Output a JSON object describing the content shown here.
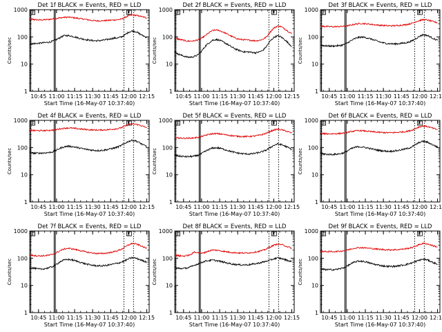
{
  "chart_data": {
    "type": "line",
    "y_scale": "log",
    "ylim": [
      1,
      1000
    ],
    "ytick_labels": [
      "1",
      "10",
      "100",
      "1000"
    ],
    "xlim": [
      "10:37:40",
      "12:17"
    ],
    "xtick_labels": [
      "10:45",
      "11:00",
      "11:15",
      "11:30",
      "11:45",
      "12:00",
      "12:15"
    ],
    "xlabel": "Start Time (16-May-07 10:37:40)",
    "ylabel": "Counts/sec",
    "legend_text": "BLACK = Events, RED = LLD",
    "colors": {
      "events": "#000000",
      "lld": "#e00000"
    },
    "times": [
      "10:38",
      "10:40",
      "10:42",
      "10:45",
      "10:48",
      "10:51",
      "10:54",
      "10:57",
      "11:00",
      "11:03",
      "11:06",
      "11:09",
      "11:12",
      "11:15",
      "11:18",
      "11:21",
      "11:24",
      "11:27",
      "11:30",
      "11:33",
      "11:36",
      "11:39",
      "11:42",
      "11:45",
      "11:48",
      "11:51",
      "11:54",
      "11:57",
      "12:00",
      "12:03",
      "12:06",
      "12:09",
      "12:12",
      "12:15"
    ],
    "panels": [
      {
        "title": "Det 1f",
        "markers": [
          "10:38",
          "10:58",
          "10:59",
          "11:56",
          "12:00",
          "12:04"
        ],
        "marker_labels": [
          "E",
          "E"
        ],
        "events": [
          55,
          56,
          57,
          58,
          60,
          62,
          64,
          70,
          80,
          95,
          110,
          112,
          108,
          100,
          92,
          85,
          80,
          76,
          73,
          72,
          73,
          76,
          80,
          85,
          90,
          92,
          100,
          120,
          150,
          165,
          155,
          130,
          110,
          95
        ],
        "lld": [
          450,
          440,
          430,
          420,
          420,
          430,
          440,
          460,
          480,
          500,
          520,
          530,
          520,
          500,
          480,
          460,
          440,
          420,
          400,
          390,
          390,
          395,
          400,
          410,
          420,
          430,
          450,
          520,
          600,
          640,
          620,
          580,
          540,
          500
        ]
      },
      {
        "title": "Det 2f",
        "markers": [
          "10:38",
          "10:58",
          "10:59",
          "11:56",
          "12:00",
          "12:04"
        ],
        "marker_labels": [
          "E",
          "E"
        ],
        "events": [
          28,
          24,
          22,
          20,
          18,
          18,
          19,
          22,
          30,
          45,
          60,
          75,
          80,
          75,
          65,
          55,
          45,
          38,
          33,
          30,
          28,
          28,
          27,
          26,
          28,
          32,
          45,
          70,
          95,
          110,
          100,
          80,
          60,
          45
        ],
        "lld": [
          90,
          85,
          80,
          75,
          70,
          70,
          72,
          78,
          90,
          110,
          140,
          170,
          180,
          170,
          150,
          130,
          110,
          95,
          85,
          80,
          78,
          76,
          74,
          72,
          75,
          82,
          100,
          150,
          210,
          250,
          240,
          200,
          160,
          130
        ]
      },
      {
        "title": "Det 3f",
        "markers": [
          "10:38",
          "10:58",
          "10:59",
          "11:56",
          "12:00",
          "12:04"
        ],
        "marker_labels": [
          "E",
          "E"
        ],
        "events": [
          50,
          48,
          47,
          46,
          46,
          47,
          48,
          52,
          60,
          72,
          85,
          95,
          98,
          95,
          88,
          80,
          72,
          65,
          60,
          57,
          56,
          55,
          56,
          58,
          60,
          64,
          72,
          88,
          105,
          120,
          115,
          100,
          85,
          75
        ],
        "lld": [
          250,
          245,
          240,
          238,
          236,
          238,
          240,
          245,
          255,
          270,
          290,
          305,
          310,
          305,
          295,
          285,
          275,
          268,
          262,
          258,
          256,
          258,
          262,
          270,
          280,
          295,
          320,
          360,
          400,
          430,
          420,
          390,
          360,
          330
        ]
      },
      {
        "title": "Det 4f",
        "markers": [
          "10:38",
          "10:58",
          "10:59",
          "11:56",
          "12:00",
          "12:04"
        ],
        "marker_labels": [
          "E",
          "E"
        ],
        "events": [
          65,
          63,
          62,
          62,
          63,
          64,
          66,
          70,
          80,
          95,
          105,
          112,
          110,
          105,
          98,
          92,
          87,
          83,
          80,
          78,
          78,
          80,
          84,
          90,
          96,
          105,
          120,
          145,
          170,
          185,
          175,
          150,
          125,
          110
        ],
        "lld": [
          430,
          425,
          420,
          418,
          418,
          422,
          430,
          440,
          460,
          490,
          510,
          525,
          520,
          505,
          490,
          475,
          462,
          452,
          445,
          440,
          440,
          444,
          452,
          465,
          480,
          500,
          540,
          620,
          700,
          740,
          720,
          670,
          600,
          540
        ]
      },
      {
        "title": "Det 5f",
        "markers": [
          "10:38",
          "10:58",
          "10:59",
          "11:56",
          "12:00",
          "12:04"
        ],
        "marker_labels": [
          "E",
          "E"
        ],
        "events": [
          52,
          50,
          48,
          47,
          46,
          47,
          48,
          52,
          60,
          72,
          85,
          95,
          98,
          95,
          88,
          80,
          73,
          67,
          63,
          60,
          59,
          58,
          59,
          62,
          66,
          72,
          82,
          100,
          120,
          135,
          130,
          115,
          100,
          85
        ],
        "lld": [
          230,
          225,
          222,
          220,
          220,
          222,
          228,
          238,
          255,
          280,
          305,
          320,
          325,
          318,
          305,
          290,
          278,
          268,
          260,
          255,
          254,
          255,
          260,
          270,
          285,
          305,
          340,
          390,
          440,
          470,
          455,
          420,
          380,
          340
        ]
      },
      {
        "title": "Det 6f",
        "markers": [
          "10:38",
          "10:58",
          "10:59",
          "11:56",
          "12:00",
          "12:04"
        ],
        "marker_labels": [
          "E",
          "E"
        ],
        "events": [
          60,
          58,
          57,
          56,
          56,
          57,
          59,
          64,
          75,
          90,
          100,
          108,
          105,
          100,
          94,
          88,
          82,
          78,
          75,
          73,
          73,
          75,
          78,
          83,
          88,
          95,
          108,
          130,
          155,
          170,
          160,
          140,
          120,
          105
        ],
        "lld": [
          330,
          325,
          322,
          320,
          320,
          324,
          330,
          340,
          360,
          385,
          405,
          418,
          415,
          405,
          392,
          380,
          370,
          362,
          356,
          352,
          352,
          356,
          362,
          372,
          385,
          405,
          440,
          510,
          580,
          620,
          600,
          550,
          500,
          450
        ]
      },
      {
        "title": "Det 7f",
        "markers": [
          "10:38",
          "10:58",
          "10:59",
          "11:56",
          "12:00",
          "12:04"
        ],
        "marker_labels": [
          "E",
          "E"
        ],
        "events": [
          45,
          44,
          42,
          40,
          40,
          42,
          45,
          50,
          60,
          75,
          85,
          90,
          88,
          82,
          75,
          68,
          62,
          58,
          55,
          53,
          52,
          53,
          55,
          58,
          62,
          66,
          72,
          82,
          95,
          105,
          100,
          90,
          80,
          72
        ],
        "lld": [
          130,
          128,
          125,
          122,
          122,
          125,
          130,
          140,
          160,
          190,
          215,
          230,
          225,
          212,
          198,
          185,
          172,
          162,
          155,
          150,
          148,
          150,
          155,
          163,
          175,
          190,
          215,
          260,
          310,
          350,
          335,
          300,
          260,
          230
        ]
      },
      {
        "title": "Det 8f",
        "markers": [
          "10:38",
          "10:58",
          "10:59",
          "11:56",
          "12:00",
          "12:04"
        ],
        "marker_labels": [
          "E",
          "E"
        ],
        "events": [
          45,
          43,
          42,
          42,
          44,
          48,
          55,
          62,
          70,
          78,
          82,
          85,
          82,
          78,
          72,
          67,
          63,
          60,
          58,
          57,
          57,
          58,
          60,
          63,
          67,
          72,
          78,
          85,
          95,
          102,
          98,
          90,
          82,
          75
        ],
        "lld": [
          130,
          125,
          122,
          120,
          125,
          135,
          170,
          160,
          150,
          165,
          185,
          200,
          198,
          190,
          180,
          172,
          165,
          160,
          157,
          155,
          155,
          158,
          162,
          170,
          180,
          195,
          220,
          260,
          300,
          330,
          320,
          290,
          260,
          230
        ]
      },
      {
        "title": "Det 9f",
        "markers": [
          "10:38",
          "10:58",
          "10:59",
          "11:56",
          "12:00",
          "12:04"
        ],
        "marker_labels": [
          "E",
          "E"
        ],
        "events": [
          40,
          39,
          38,
          38,
          38,
          39,
          41,
          45,
          52,
          62,
          72,
          78,
          78,
          74,
          68,
          62,
          58,
          55,
          52,
          50,
          50,
          50,
          52,
          55,
          58,
          62,
          68,
          76,
          85,
          92,
          88,
          78,
          68,
          60
        ],
        "lld": [
          180,
          178,
          176,
          175,
          175,
          177,
          180,
          188,
          200,
          218,
          235,
          245,
          245,
          240,
          232,
          225,
          218,
          212,
          208,
          205,
          204,
          205,
          208,
          214,
          222,
          232,
          250,
          280,
          320,
          350,
          340,
          310,
          280,
          260
        ]
      }
    ]
  }
}
